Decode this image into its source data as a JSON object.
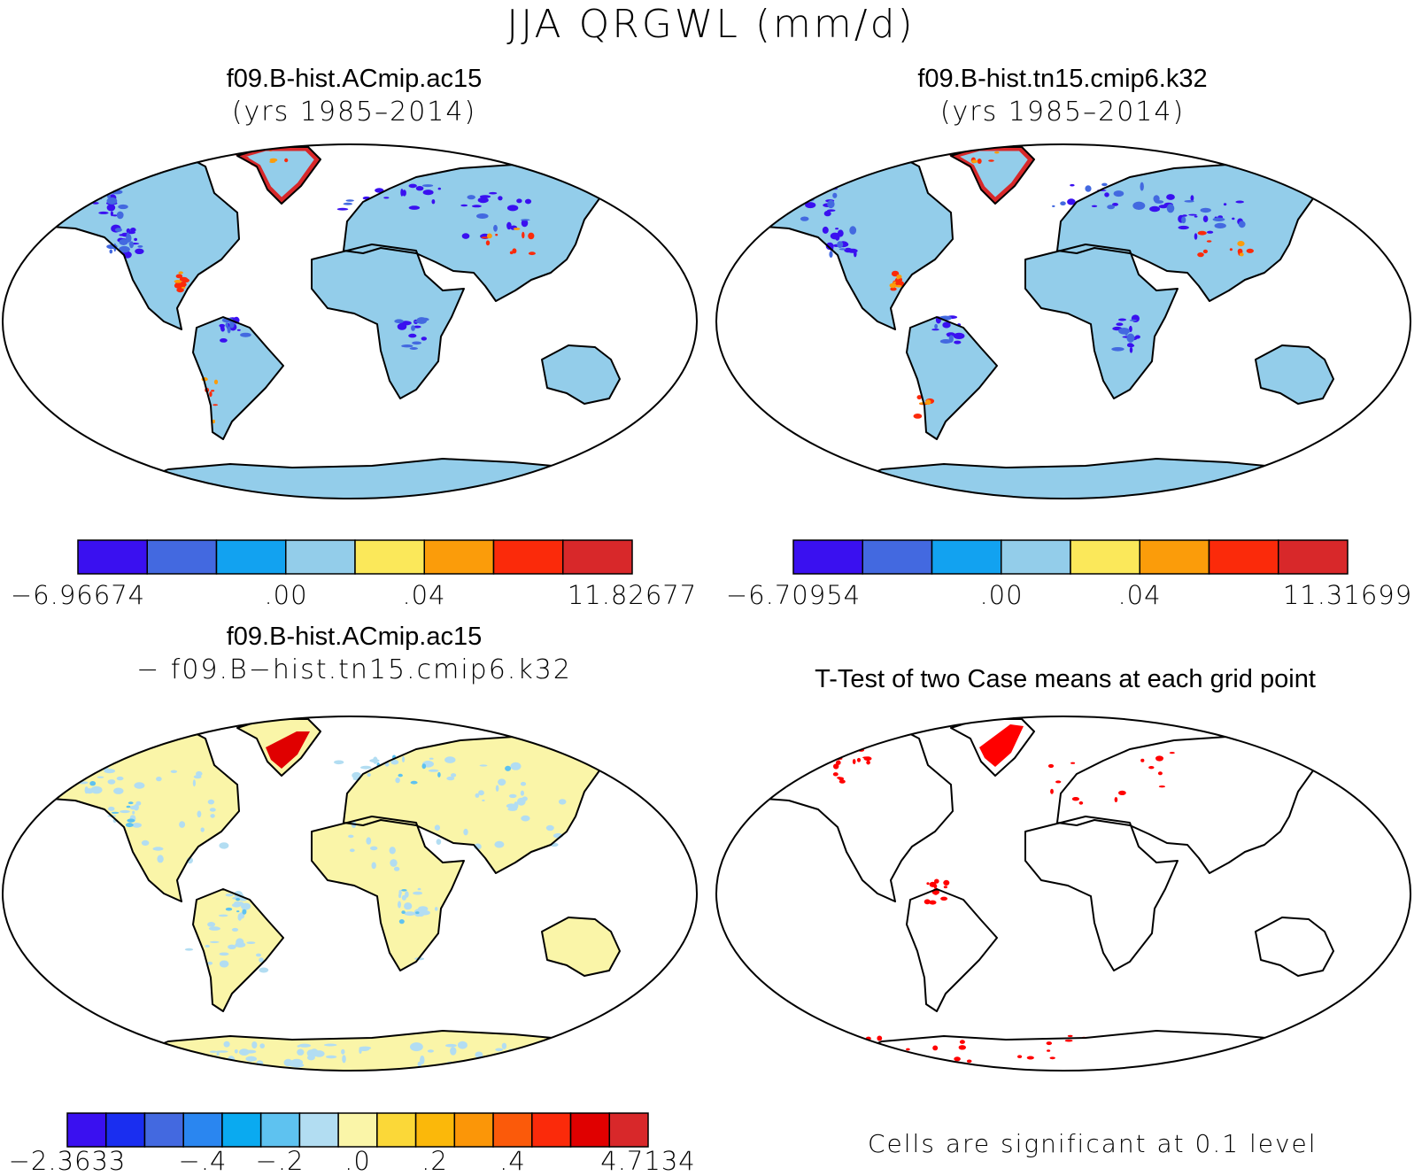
{
  "title": "JJA QRGWL (mm/d)",
  "panels": [
    {
      "id": "case1",
      "title": "f09.B-hist.ACmip.ac15",
      "subtitle": "(yrs 1985–2014)",
      "land_color": "#93cdea",
      "colorbar": {
        "colors": [
          "#3a10f0",
          "#4369e0",
          "#12a2f0",
          "#93cdea",
          "#fbe85a",
          "#fb9c0a",
          "#fb2a0a",
          "#d8282a"
        ],
        "labels": [
          "−6.96674",
          ".00",
          ".04",
          "11.82677"
        ]
      }
    },
    {
      "id": "case2",
      "title": "f09.B-hist.tn15.cmip6.k32",
      "subtitle": "(yrs 1985–2014)",
      "land_color": "#93cdea",
      "colorbar": {
        "colors": [
          "#3a10f0",
          "#4369e0",
          "#12a2f0",
          "#93cdea",
          "#fbe85a",
          "#fb9c0a",
          "#fb2a0a",
          "#d8282a"
        ],
        "labels": [
          "−6.70954",
          ".00",
          ".04",
          "11.31699"
        ]
      }
    },
    {
      "id": "diff",
      "title": "f09.B-hist.ACmip.ac15",
      "subtitle": "− f09.B−hist.tn15.cmip6.k32",
      "land_color": "#faf5a8",
      "colorbar": {
        "colors": [
          "#3a10f0",
          "#1a2ef0",
          "#4369e0",
          "#2a86f0",
          "#0aaaf0",
          "#5ec2f0",
          "#b2ddf2",
          "#faf5a8",
          "#fbd838",
          "#fbb80a",
          "#fb9608",
          "#fb5a0a",
          "#fb2a0a",
          "#e00000",
          "#d8282a"
        ],
        "labels": [
          "−2.3633",
          "−.4",
          "−.2",
          ".0",
          ".2",
          ".4",
          "4.7134"
        ]
      }
    },
    {
      "id": "ttest",
      "title": "T-Test of two Case means at each grid point",
      "subtitle": "",
      "land_color": "#ffffff",
      "note": "Cells are significant at 0.1 level"
    }
  ],
  "colors": {
    "outline": "#000000",
    "ocean": "#ffffff",
    "significant": "#ff0000"
  }
}
